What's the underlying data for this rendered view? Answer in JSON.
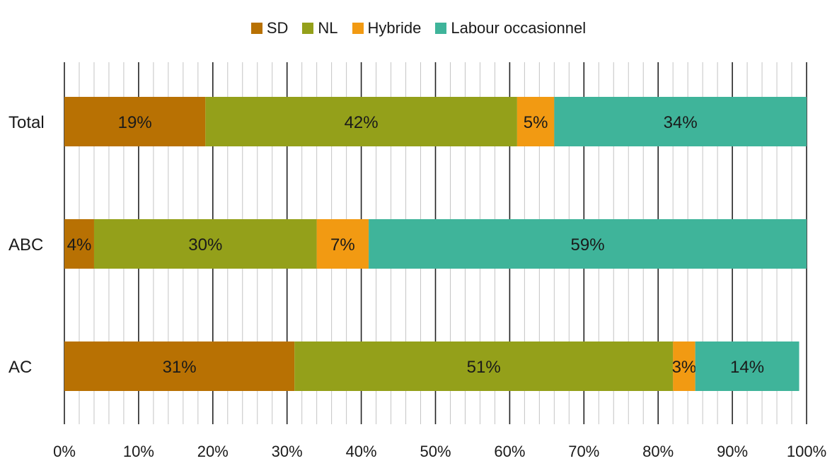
{
  "chart_data": {
    "type": "bar",
    "orientation": "horizontal",
    "stacked": true,
    "categories": [
      "Total",
      "ABC",
      "AC"
    ],
    "series": [
      {
        "name": "SD",
        "color": "#b87103",
        "values": [
          19,
          4,
          31
        ]
      },
      {
        "name": "NL",
        "color": "#94a01a",
        "values": [
          42,
          30,
          51
        ]
      },
      {
        "name": "Hybride",
        "color": "#f29a12",
        "values": [
          5,
          7,
          3
        ]
      },
      {
        "name": "Labour occasionnel",
        "color": "#3fb49a",
        "values": [
          34,
          59,
          14
        ]
      }
    ],
    "data_labels": [
      [
        "19%",
        "4%",
        "31%"
      ],
      [
        "42%",
        "30%",
        "51%"
      ],
      [
        "5%",
        "7%",
        "3%"
      ],
      [
        "34%",
        "59%",
        "14%"
      ]
    ],
    "x_ticks": [
      "0%",
      "10%",
      "20%",
      "30%",
      "40%",
      "50%",
      "60%",
      "70%",
      "80%",
      "90%",
      "100%"
    ],
    "xlim": [
      0,
      100
    ],
    "grid": true,
    "legend_position": "top-center",
    "title": "",
    "xlabel": "",
    "ylabel": ""
  }
}
